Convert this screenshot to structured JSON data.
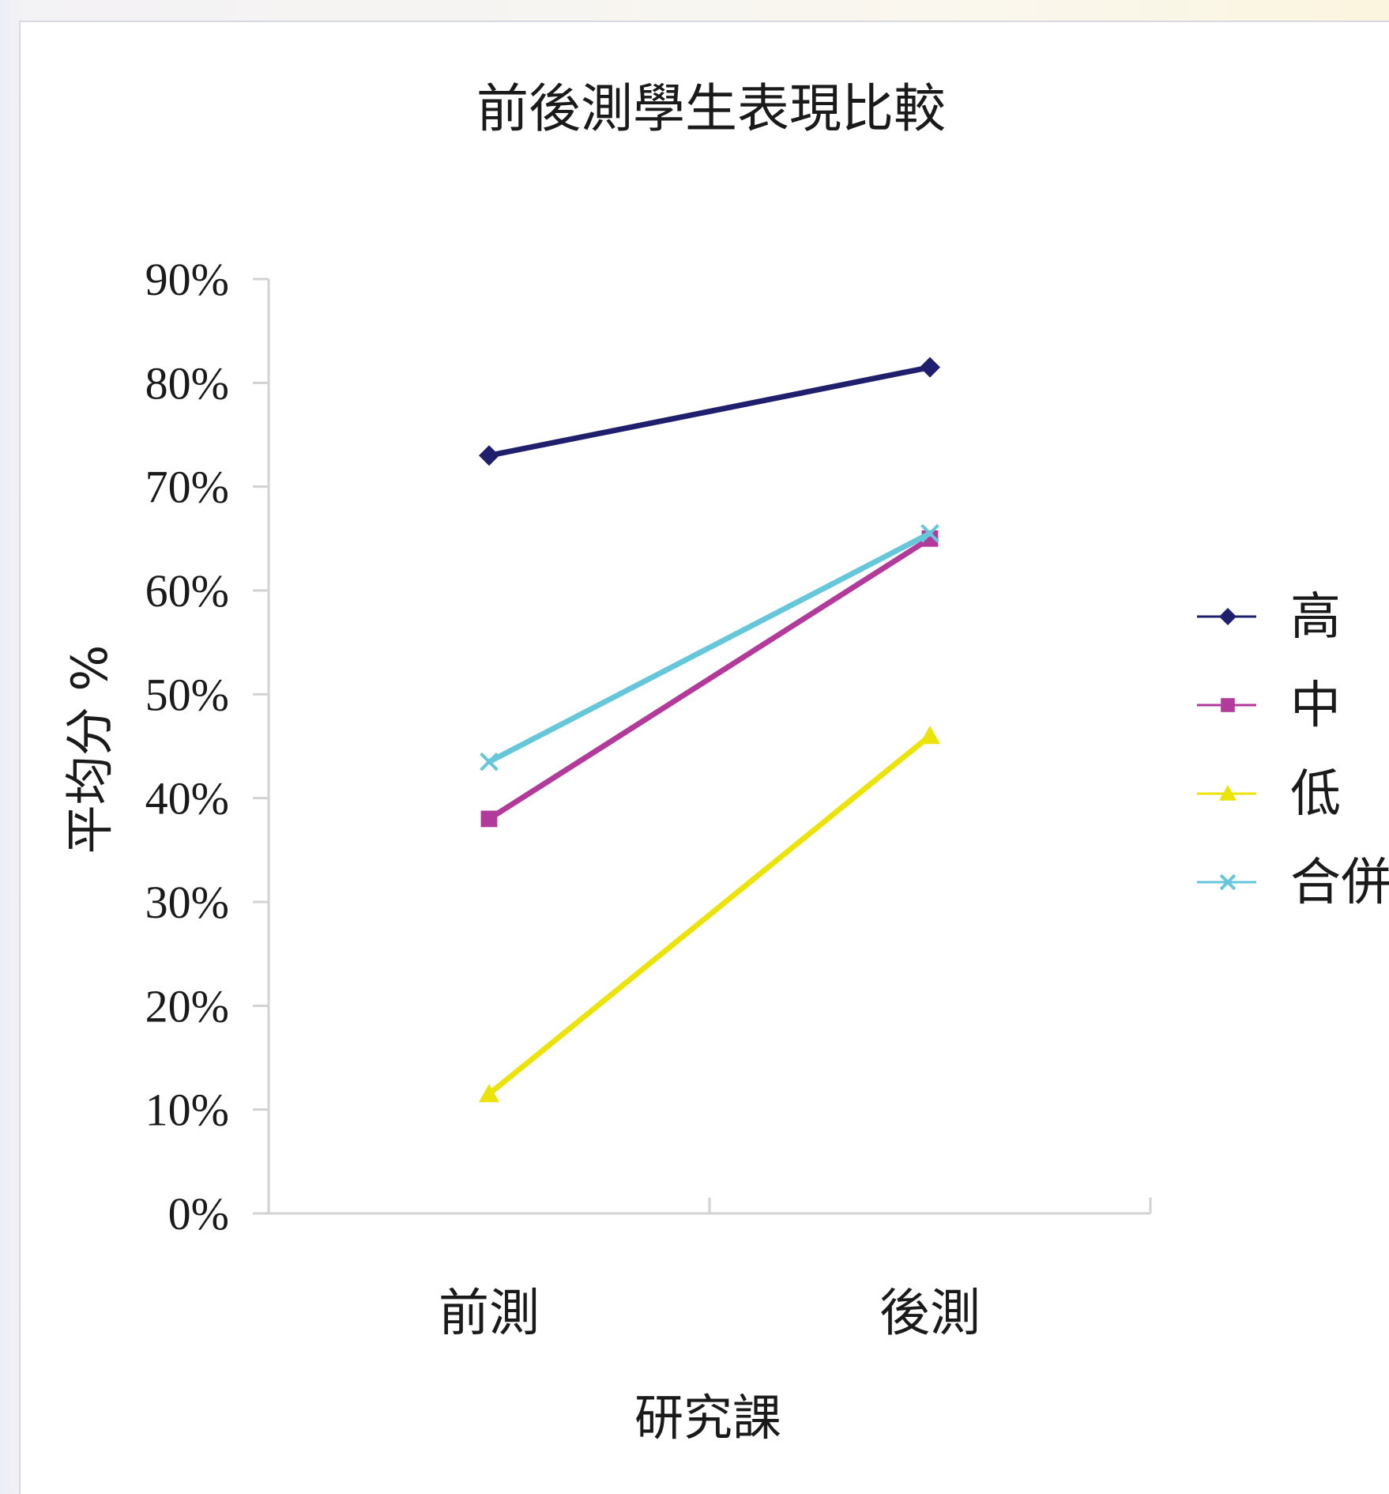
{
  "chart_data": {
    "type": "line",
    "title": "前後測學生表現比較",
    "xlabel": "研究課",
    "ylabel": "平均分 %",
    "categories": [
      "前測",
      "後測"
    ],
    "ylim": [
      0,
      90
    ],
    "yticks": [
      "0%",
      "10%",
      "20%",
      "30%",
      "40%",
      "50%",
      "60%",
      "70%",
      "80%",
      "90%"
    ],
    "grid": false,
    "legend_position": "right",
    "series": [
      {
        "name": "高",
        "values": [
          73,
          81.5
        ],
        "color": "#1f1f6e",
        "marker": "diamond"
      },
      {
        "name": "中",
        "values": [
          38,
          65
        ],
        "color": "#b23a9a",
        "marker": "square"
      },
      {
        "name": "低",
        "values": [
          11.5,
          46
        ],
        "color": "#ece30a",
        "marker": "triangle"
      },
      {
        "name": "合併",
        "values": [
          43.5,
          65.5
        ],
        "color": "#66c6da",
        "marker": "x"
      }
    ]
  }
}
